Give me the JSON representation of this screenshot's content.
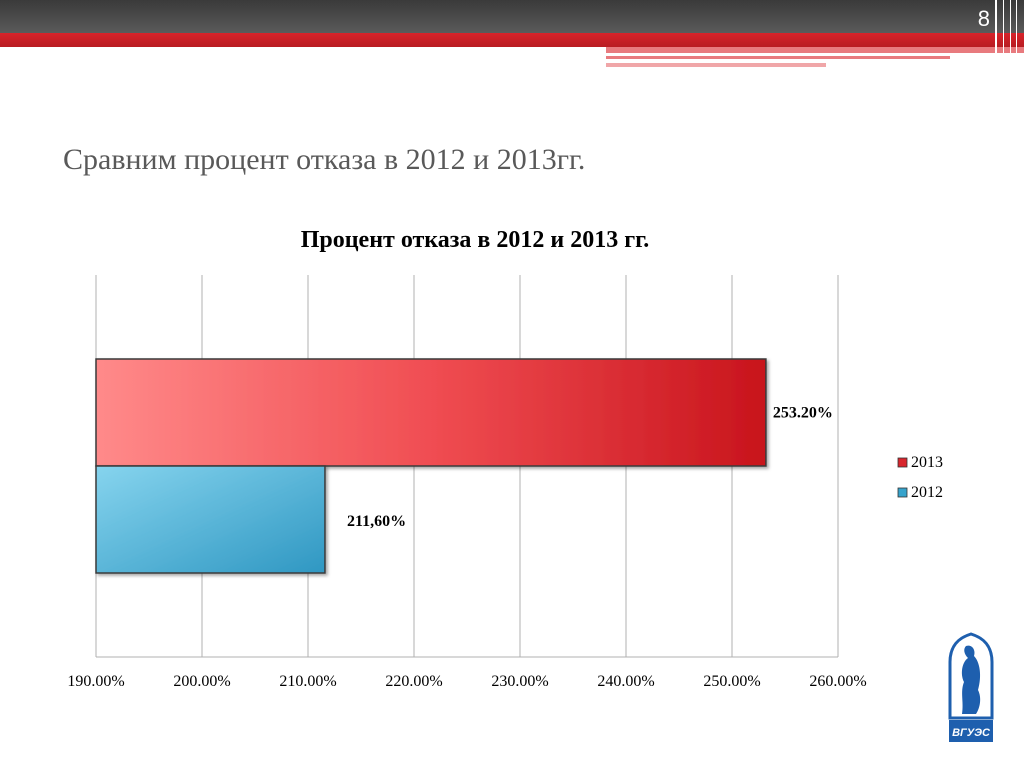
{
  "slide": {
    "number": "8",
    "heading": "Сравним процент отказа в 2012 и 2013гг.",
    "logo_text": "ВГУЭС"
  },
  "colors": {
    "series_2013": "#d8262d",
    "series_2012": "#36a3cc",
    "accent_red": "#d8232a",
    "bar_dark": "#4a4a4a"
  },
  "chart_data": {
    "type": "bar",
    "orientation": "horizontal",
    "title": "Процент отказа в 2012 и 2013 гг.",
    "xlim": [
      190,
      260
    ],
    "xticks": [
      190,
      200,
      210,
      220,
      230,
      240,
      250,
      260
    ],
    "xtick_labels": [
      "190.00%",
      "200.00%",
      "210.00%",
      "220.00%",
      "230.00%",
      "240.00%",
      "250.00%",
      "260.00%"
    ],
    "grid": true,
    "legend_position": "right",
    "series": [
      {
        "name": "2013",
        "value": 253.2,
        "label": "253.20%"
      },
      {
        "name": "2012",
        "value": 211.6,
        "label": "211,60%"
      }
    ]
  }
}
